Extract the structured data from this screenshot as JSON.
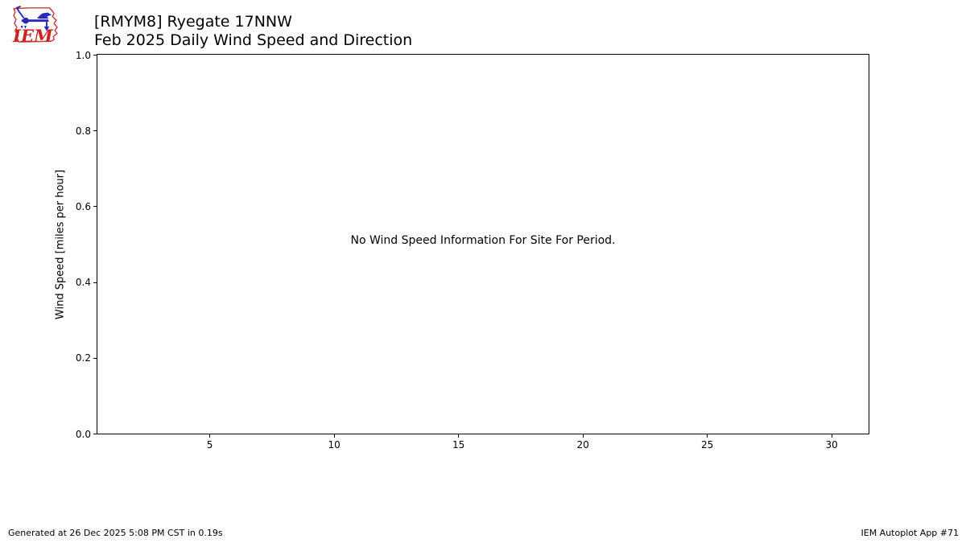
{
  "logo": {
    "text": "IEM",
    "outline_color": "#c43c3c",
    "instrument_color": "#2a2ab8",
    "text_color": "#cc2222"
  },
  "chart_data": {
    "type": "line",
    "title": "[RMYM8] Ryegate 17NNW",
    "subtitle": "Feb 2025 Daily Wind Speed and Direction",
    "xlabel": "",
    "ylabel": "Wind Speed [miles per hour]",
    "xlim": [
      0.5,
      31.5
    ],
    "ylim": [
      0.0,
      1.0
    ],
    "xticks": {
      "values": [
        5,
        10,
        15,
        20,
        25,
        30
      ],
      "labels": [
        "5",
        "10",
        "15",
        "20",
        "25",
        "30"
      ]
    },
    "yticks": {
      "values": [
        0.0,
        0.2,
        0.4,
        0.6,
        0.8,
        1.0
      ],
      "labels": [
        "0.0",
        "0.2",
        "0.4",
        "0.6",
        "0.8",
        "1.0"
      ]
    },
    "series": [],
    "no_data_message": "No Wind Speed Information For Site For Period.",
    "grid": false,
    "legend": "none"
  },
  "footer": {
    "generated": "Generated at 26 Dec 2025 5:08 PM CST in 0.19s",
    "app": "IEM Autoplot App #71"
  },
  "colors": {
    "background": "#ffffff",
    "axis": "#000000",
    "text": "#000000"
  }
}
